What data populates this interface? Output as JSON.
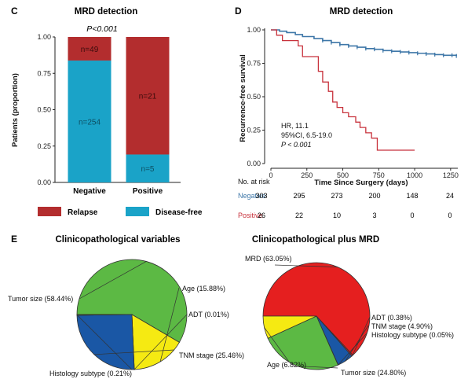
{
  "panels": {
    "C": {
      "label": "C"
    },
    "D": {
      "label": "D"
    },
    "E": {
      "label": "E"
    }
  },
  "chart_data": [
    {
      "id": "C",
      "type": "bar",
      "title": "MRD detection",
      "annotation": "P<0.001",
      "categories": [
        "Negative",
        "Positive"
      ],
      "ylabel": "Patients (proportion)",
      "ylim": [
        0,
        1
      ],
      "yticks": [
        "0.00",
        "0.25",
        "0.50",
        "0.75",
        "1.00"
      ],
      "stacked": true,
      "series": [
        {
          "name": "Disease-free",
          "color": "#1aa3c8",
          "values": [
            0.838,
            0.192
          ],
          "labels": [
            "n=254",
            "n=5"
          ]
        },
        {
          "name": "Relapse",
          "color": "#b32d2e",
          "values": [
            0.162,
            0.808
          ],
          "labels": [
            "n=49",
            "n=21"
          ]
        }
      ],
      "legend": {
        "placement": "bottom",
        "entries": [
          "Relapse",
          "Disease-free"
        ]
      }
    },
    {
      "id": "D",
      "type": "line",
      "title": "MRD detection",
      "xlabel": "Time Since Surgery (days)",
      "ylabel": "Recurrence-free survival",
      "xlim": [
        0,
        1300
      ],
      "ylim": [
        0,
        1.0
      ],
      "xticks": [
        "0",
        "250",
        "500",
        "750",
        "1000",
        "1250"
      ],
      "yticks": [
        "0.00",
        "0.25",
        "0.50",
        "0.75",
        "1.00"
      ],
      "series": [
        {
          "name": "Negative",
          "color": "#3e77a8",
          "x": [
            0,
            60,
            110,
            170,
            220,
            300,
            360,
            420,
            480,
            540,
            600,
            660,
            720,
            780,
            840,
            900,
            960,
            1020,
            1080,
            1140,
            1200,
            1260,
            1290
          ],
          "y": [
            1.0,
            0.99,
            0.98,
            0.965,
            0.95,
            0.935,
            0.92,
            0.905,
            0.89,
            0.88,
            0.87,
            0.86,
            0.855,
            0.845,
            0.84,
            0.835,
            0.83,
            0.825,
            0.82,
            0.815,
            0.81,
            0.81,
            0.805
          ]
        },
        {
          "name": "Positive",
          "color": "#c8323c",
          "x": [
            0,
            40,
            80,
            190,
            220,
            330,
            360,
            400,
            430,
            460,
            500,
            540,
            590,
            620,
            660,
            700,
            740,
            1000
          ],
          "y": [
            1.0,
            0.96,
            0.92,
            0.88,
            0.8,
            0.69,
            0.61,
            0.54,
            0.46,
            0.42,
            0.38,
            0.35,
            0.31,
            0.27,
            0.23,
            0.19,
            0.1,
            0.1
          ]
        }
      ],
      "stats": {
        "hr": "HR, 11.1",
        "ci": "95%CI, 6.5-19.0",
        "p": "P < 0.001"
      },
      "risk_table": {
        "header": "No. at risk",
        "rows": [
          {
            "name": "Negative",
            "color": "#3e77a8",
            "values": [
              "303",
              "295",
              "273",
              "200",
              "148",
              "24"
            ]
          },
          {
            "name": "Positive",
            "color": "#c8323c",
            "values": [
              "26",
              "22",
              "10",
              "3",
              "0",
              "0"
            ]
          }
        ]
      }
    },
    {
      "id": "E1",
      "type": "pie",
      "title": "Clinicopathological variables",
      "slices": [
        {
          "label": "Tumor size (58.44%)",
          "value": 58.44,
          "color": "#5cb944"
        },
        {
          "label": "Age (15.88%)",
          "value": 15.88,
          "color": "#f5ea12"
        },
        {
          "label": "ADT (0.01%)",
          "value": 0.01,
          "color": "#e51f1f"
        },
        {
          "label": "TNM stage (25.46%)",
          "value": 25.46,
          "color": "#1a57a5"
        },
        {
          "label": "Histology subtype (0.21%)",
          "value": 0.21,
          "color": "#5cb944"
        }
      ]
    },
    {
      "id": "E2",
      "type": "pie",
      "title": "Clinicopathological plus MRD",
      "slices": [
        {
          "label": "MRD (63.05%)",
          "value": 63.05,
          "color": "#e51f1f"
        },
        {
          "label": "ADT (0.38%)",
          "value": 0.38,
          "color": "#e51f1f"
        },
        {
          "label": "TNM stage (4.90%)",
          "value": 4.9,
          "color": "#1a57a5"
        },
        {
          "label": "Histology subtype (0.05%)",
          "value": 0.05,
          "color": "#5cb944"
        },
        {
          "label": "Tumor size (24.80%)",
          "value": 24.8,
          "color": "#5cb944"
        },
        {
          "label": "Age (6.82%)",
          "value": 6.82,
          "color": "#f5ea12"
        }
      ]
    }
  ]
}
